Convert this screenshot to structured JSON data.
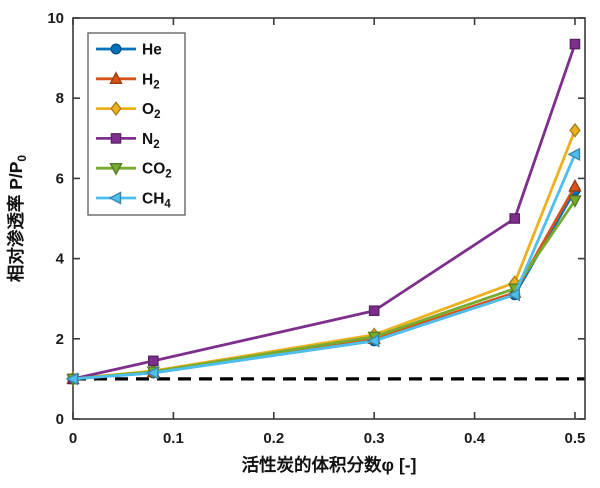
{
  "figure": {
    "background": "#ffffff",
    "axis_color": "#3a3a3a",
    "tick_label_color": "#1a1a1a"
  },
  "chart_data": {
    "type": "line",
    "title": "",
    "xlabel": "活性炭的体积分数φ [-]",
    "ylabel_main": "相对渗透率 P/P",
    "ylabel_sub": "0",
    "xlim": [
      0,
      0.51
    ],
    "ylim": [
      0,
      10
    ],
    "xticks": [
      0,
      0.1,
      0.2,
      0.3,
      0.4,
      0.5
    ],
    "xtick_labels": [
      "0",
      "0.1",
      "0.2",
      "0.3",
      "0.4",
      "0.5"
    ],
    "yticks": [
      0,
      2,
      4,
      6,
      8,
      10
    ],
    "ytick_labels": [
      "0",
      "2",
      "4",
      "6",
      "8",
      "10"
    ],
    "grid": false,
    "legend_position": "top-left",
    "x": [
      0,
      0.08,
      0.3,
      0.44,
      0.5
    ],
    "series": [
      {
        "name": "He",
        "label_main": "He",
        "label_sub": "",
        "color": "#0072BD",
        "marker": "circle",
        "values": [
          1.0,
          1.15,
          1.95,
          3.1,
          5.7
        ]
      },
      {
        "name": "H2",
        "label_main": "H",
        "label_sub": "2",
        "color": "#D95319",
        "marker": "triangle-up",
        "values": [
          1.0,
          1.17,
          2.0,
          3.15,
          5.8
        ]
      },
      {
        "name": "O2",
        "label_main": "O",
        "label_sub": "2",
        "color": "#EDB120",
        "marker": "diamond",
        "values": [
          1.0,
          1.2,
          2.1,
          3.4,
          7.2
        ]
      },
      {
        "name": "N2",
        "label_main": "N",
        "label_sub": "2",
        "color": "#7E2F8E",
        "marker": "square",
        "values": [
          1.0,
          1.45,
          2.7,
          5.0,
          9.35
        ]
      },
      {
        "name": "CO2",
        "label_main": "CO",
        "label_sub": "2",
        "color": "#77AC30",
        "marker": "triangle-down",
        "values": [
          1.0,
          1.18,
          2.05,
          3.25,
          5.45
        ]
      },
      {
        "name": "CH4",
        "label_main": "CH",
        "label_sub": "4",
        "color": "#4DBEEE",
        "marker": "triangle-left",
        "values": [
          1.0,
          1.15,
          1.95,
          3.1,
          6.6
        ]
      }
    ],
    "reference_line": {
      "y": 1.0,
      "style": "dashed",
      "color": "#000000"
    }
  }
}
